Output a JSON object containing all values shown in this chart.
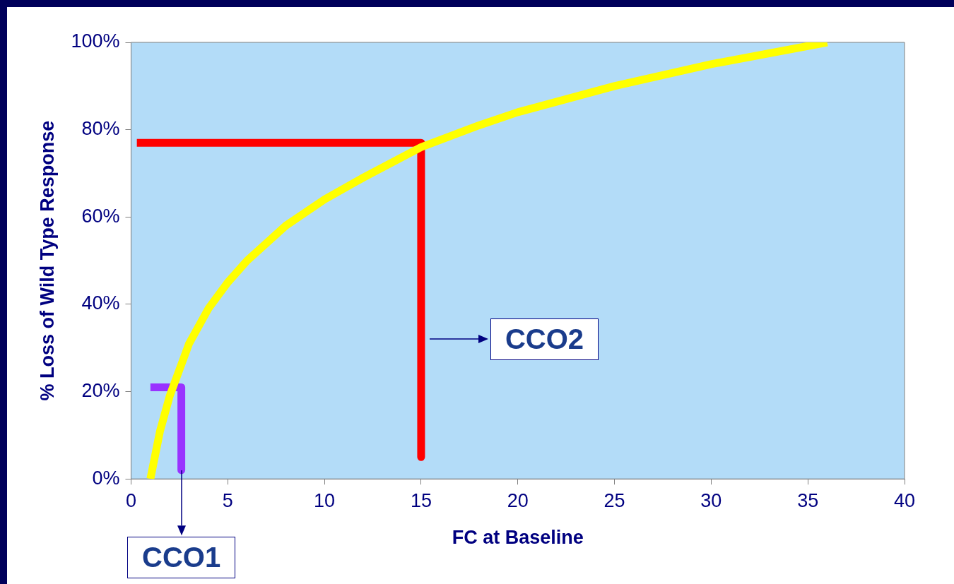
{
  "chart_data": {
    "type": "line",
    "xlabel": "FC at Baseline",
    "ylabel": "% Loss of Wild Type Response",
    "xlim": [
      0,
      40
    ],
    "xticks": [
      0,
      5,
      10,
      15,
      20,
      25,
      30,
      35,
      40
    ],
    "ylim": [
      0,
      100
    ],
    "yticks": [
      {
        "value": 0,
        "label": "0%"
      },
      {
        "value": 20,
        "label": "20%"
      },
      {
        "value": 40,
        "label": "40%"
      },
      {
        "value": 60,
        "label": "60%"
      },
      {
        "value": 80,
        "label": "80%"
      },
      {
        "value": 100,
        "label": "100%"
      }
    ],
    "grid": false,
    "legend": false,
    "marker": "none",
    "line_style": "solid",
    "series": [
      {
        "color": "#ffff00",
        "x": [
          1,
          1.5,
          2,
          3,
          4,
          5,
          6,
          8,
          10,
          12,
          15,
          18,
          20,
          25,
          30,
          36
        ],
        "values": [
          0,
          11,
          19,
          31,
          39,
          45,
          50,
          58,
          64,
          69,
          76,
          81,
          84,
          90,
          95,
          100
        ]
      },
      {
        "color": "#ff0000",
        "x": [
          0.3,
          15,
          15
        ],
        "values": [
          77,
          77,
          5
        ]
      },
      {
        "color": "#9933ff",
        "x": [
          1,
          2.6,
          2.6
        ],
        "values": [
          21,
          21,
          2
        ]
      }
    ],
    "annotations": [
      {
        "text": "CCO2",
        "x": 15,
        "y": 32
      },
      {
        "text": "CCO1",
        "x": 2.6,
        "y": 2
      }
    ]
  }
}
